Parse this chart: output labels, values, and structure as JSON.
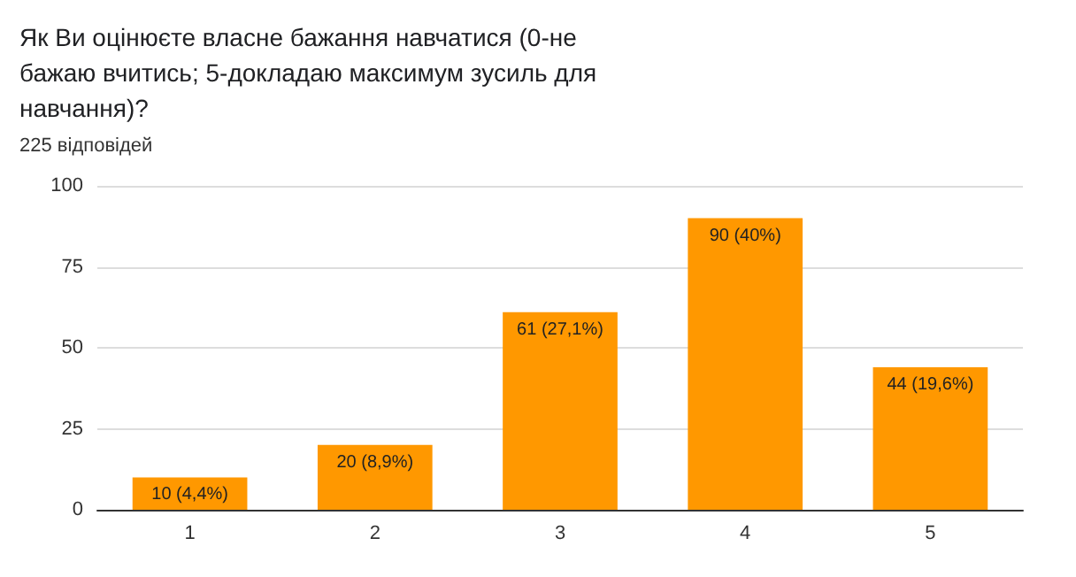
{
  "chart_data": {
    "type": "bar",
    "title": "Як Ви оцінюєте власне бажання навчатися (0-не бажаю вчитись; 5-докладаю максимум зусиль для навчання)?",
    "subtitle": "225 відповідей",
    "categories": [
      "1",
      "2",
      "3",
      "4",
      "5"
    ],
    "values": [
      10,
      20,
      61,
      90,
      44
    ],
    "value_labels": [
      "10 (4,4%)",
      "20 (8,9%)",
      "61 (27,1%)",
      "90 (40%)",
      "44 (19,6%)"
    ],
    "color": "#ff9800",
    "ylim": [
      0,
      100
    ],
    "yticks": [
      0,
      25,
      50,
      75,
      100
    ],
    "grid": "y"
  }
}
